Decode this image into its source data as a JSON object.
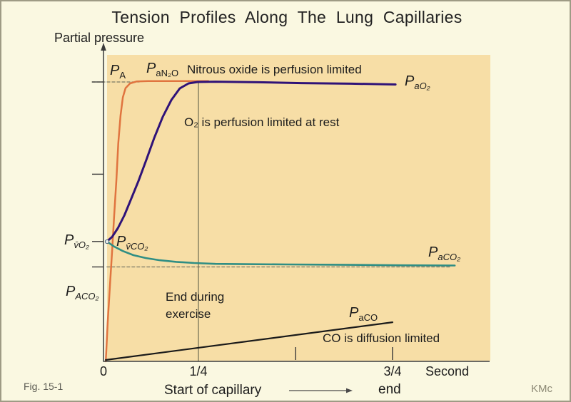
{
  "title": "Tension Profiles Along The Lung Capillaries",
  "axes": {
    "y_label": "Partial pressure",
    "x_tick_labels": {
      "zero": "0",
      "quarter": "1/4",
      "three_quarter": "3/4"
    },
    "x_unit": "Second",
    "caption_start": "Start of capillary",
    "caption_end": "end"
  },
  "labels": {
    "pA": {
      "main": "P",
      "sub": "A"
    },
    "paN2O": {
      "main": "P",
      "sub": "aN₂O"
    },
    "paO2": {
      "main": "P",
      "sub": "aO₂"
    },
    "pvO2": {
      "main": "P",
      "sub": "v̄O₂"
    },
    "pvCO2": {
      "main": "P",
      "sub": "v̄CO₂"
    },
    "paCO2": {
      "main": "P",
      "sub": "aCO₂"
    },
    "pACO2": {
      "main": "P",
      "sub": "ACO₂"
    },
    "paCO": {
      "main": "P",
      "sub": "aCO"
    }
  },
  "annotations": {
    "n2o": "Nitrous oxide is perfusion limited",
    "o2": "O₂ is perfusion limited at rest",
    "exercise": "End during exercise",
    "co": "CO is diffusion limited"
  },
  "footer": {
    "fig": "Fig. 15-1",
    "credit": "KMc"
  },
  "colors": {
    "background": "#FAF8E1",
    "plot_background": "#F7DEA6",
    "n2o_curve": "#E0743F",
    "o2_curve": "#2F1278",
    "co2_curve": "#2F8E84",
    "co_curve": "#1a1a1a",
    "guide": "#7A7865",
    "axis": "#3A3A3A"
  },
  "chart_data": {
    "type": "line",
    "title": "Tension Profiles Along The Lung Capillaries",
    "xlabel": "Second (time along capillary, start to end)",
    "ylabel": "Partial pressure (relative units, alveolar level = 100)",
    "xlim": [
      0,
      1.02
    ],
    "ylim": [
      0,
      110
    ],
    "x_ticks": [
      0,
      0.25,
      0.5,
      0.75
    ],
    "x_tick_marks": [
      0.506,
      0.761
    ],
    "vertical_reference_x": 0.25,
    "y_tick_values": [
      100,
      67,
      42.9,
      33.8
    ],
    "legend_position": "inline-annotations",
    "grid": false,
    "series": [
      {
        "id": "n2o",
        "name": "N2O (PaN2O) - perfusion limited",
        "color": "#E0743F",
        "width": 2.5,
        "points": [
          [
            0.006,
            0
          ],
          [
            0.011,
            14
          ],
          [
            0.017,
            27
          ],
          [
            0.023,
            40
          ],
          [
            0.028,
            52
          ],
          [
            0.034,
            65
          ],
          [
            0.039,
            78
          ],
          [
            0.045,
            88
          ],
          [
            0.051,
            94.5
          ],
          [
            0.058,
            97.8
          ],
          [
            0.07,
            99.5
          ],
          [
            0.088,
            100.2
          ],
          [
            0.117,
            100.3
          ],
          [
            0.182,
            100.3
          ],
          [
            0.276,
            100.3
          ]
        ]
      },
      {
        "id": "o2",
        "name": "O2 (PaO2) - perfusion limited at rest",
        "color": "#2F1278",
        "width": 3,
        "points": [
          [
            0.009,
            42.9
          ],
          [
            0.023,
            44.6
          ],
          [
            0.038,
            47.7
          ],
          [
            0.055,
            52.3
          ],
          [
            0.073,
            58.2
          ],
          [
            0.092,
            64.5
          ],
          [
            0.113,
            72.2
          ],
          [
            0.133,
            79.8
          ],
          [
            0.156,
            87.5
          ],
          [
            0.179,
            93.6
          ],
          [
            0.201,
            97.7
          ],
          [
            0.224,
            99.5
          ],
          [
            0.248,
            100
          ],
          [
            0.295,
            100.1
          ],
          [
            0.408,
            99.9
          ],
          [
            0.521,
            99.6
          ],
          [
            0.652,
            99.4
          ],
          [
            0.769,
            99.1
          ]
        ]
      },
      {
        "id": "co2",
        "name": "CO2 (PaCO2)",
        "color": "#2F8E84",
        "width": 2.6,
        "points": [
          [
            0.009,
            42.9
          ],
          [
            0.028,
            41.1
          ],
          [
            0.051,
            39.5
          ],
          [
            0.079,
            38
          ],
          [
            0.111,
            37
          ],
          [
            0.148,
            36.2
          ],
          [
            0.192,
            35.6
          ],
          [
            0.239,
            35.2
          ],
          [
            0.295,
            34.9
          ],
          [
            0.37,
            34.8
          ],
          [
            0.483,
            34.7
          ],
          [
            0.615,
            34.6
          ],
          [
            0.784,
            34.4
          ],
          [
            0.925,
            34.3
          ]
        ]
      },
      {
        "id": "co",
        "name": "CO (PaCO) - diffusion limited",
        "color": "#1a1a1a",
        "width": 2.2,
        "points": [
          [
            0.006,
            0.5
          ],
          [
            0.761,
            14
          ]
        ]
      }
    ],
    "guides": [
      {
        "id": "pa-level",
        "label": "PA alveolar level",
        "color": "#7A7865",
        "width": 1.3,
        "dash": "4 3",
        "points": [
          [
            -0.03,
            100
          ],
          [
            0.094,
            100
          ]
        ]
      },
      {
        "id": "paco2-exercise-level",
        "label": "PACO2 end-exercise level",
        "color": "#7A7865",
        "width": 1.3,
        "dash": "4 3",
        "points": [
          [
            0.009,
            33.8
          ],
          [
            0.915,
            33.8
          ]
        ]
      },
      {
        "id": "quarter-second-line",
        "label": "1/4 second reference",
        "color": "#6E6C52",
        "width": 1.2,
        "dash": null,
        "points": [
          [
            0.25,
            0
          ],
          [
            0.25,
            100
          ]
        ]
      }
    ]
  }
}
